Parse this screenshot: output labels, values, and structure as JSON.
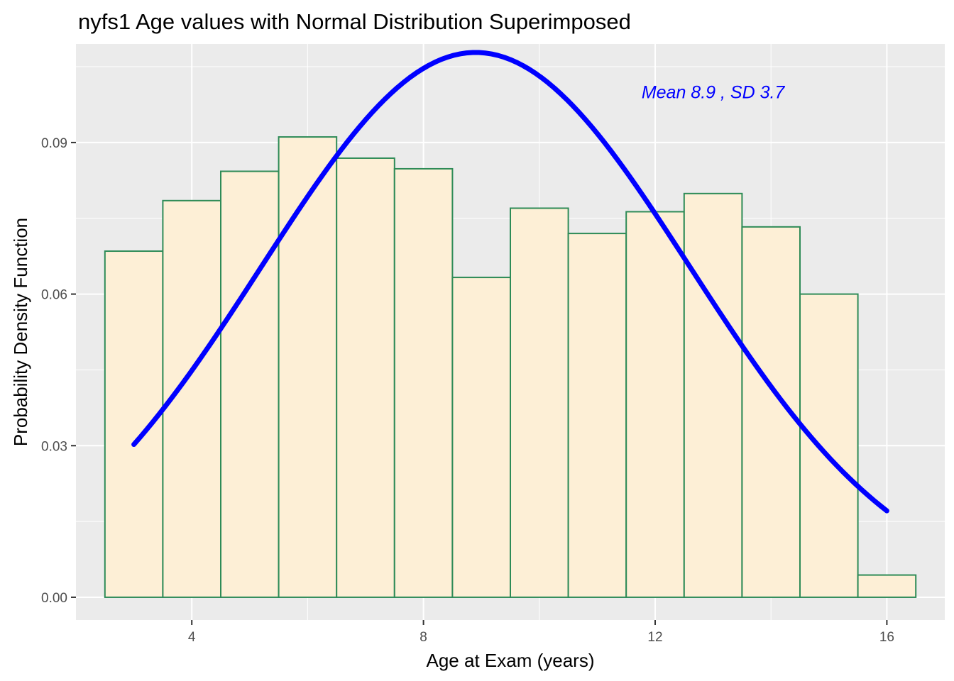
{
  "chart_data": {
    "type": "bar",
    "title": "nyfs1 Age values with Normal Distribution Superimposed",
    "xlabel": "Age at Exam (years)",
    "ylabel": "Probability Density Function",
    "xlim": [
      2.0,
      17.0
    ],
    "ylim": [
      -0.0045,
      0.1095
    ],
    "x_ticks": [
      4,
      8,
      12,
      16
    ],
    "x_tick_labels": [
      "4",
      "8",
      "12",
      "16"
    ],
    "y_ticks": [
      0.0,
      0.03,
      0.06,
      0.09
    ],
    "y_tick_labels": [
      "0.00",
      "0.03",
      "0.06",
      "0.09"
    ],
    "grid": true,
    "histogram": {
      "bins": [
        {
          "x_start": 2.5,
          "x_end": 3.5,
          "density": 0.0685
        },
        {
          "x_start": 3.5,
          "x_end": 4.5,
          "density": 0.0785
        },
        {
          "x_start": 4.5,
          "x_end": 5.5,
          "density": 0.0843
        },
        {
          "x_start": 5.5,
          "x_end": 6.5,
          "density": 0.0911
        },
        {
          "x_start": 6.5,
          "x_end": 7.5,
          "density": 0.0869
        },
        {
          "x_start": 7.5,
          "x_end": 8.5,
          "density": 0.0848
        },
        {
          "x_start": 8.5,
          "x_end": 9.5,
          "density": 0.0633
        },
        {
          "x_start": 9.5,
          "x_end": 10.5,
          "density": 0.077
        },
        {
          "x_start": 10.5,
          "x_end": 11.5,
          "density": 0.072
        },
        {
          "x_start": 11.5,
          "x_end": 12.5,
          "density": 0.0763
        },
        {
          "x_start": 12.5,
          "x_end": 13.5,
          "density": 0.0799
        },
        {
          "x_start": 13.5,
          "x_end": 14.5,
          "density": 0.0733
        },
        {
          "x_start": 14.5,
          "x_end": 15.5,
          "density": 0.06
        },
        {
          "x_start": 15.5,
          "x_end": 16.5,
          "density": 0.0044
        }
      ],
      "fill_color": "#fdefd6",
      "outline_color": "#2e8b57"
    },
    "normal_curve": {
      "mean": 8.9,
      "sd": 3.7,
      "x_min": 3,
      "x_max": 16,
      "color": "#0000ff"
    },
    "annotation": {
      "text": "Mean 8.9 , SD 3.7",
      "x": 13.0,
      "y": 0.1,
      "color": "#0000ff"
    },
    "panel_background": "#ebebeb",
    "grid_color": "#ffffff"
  }
}
